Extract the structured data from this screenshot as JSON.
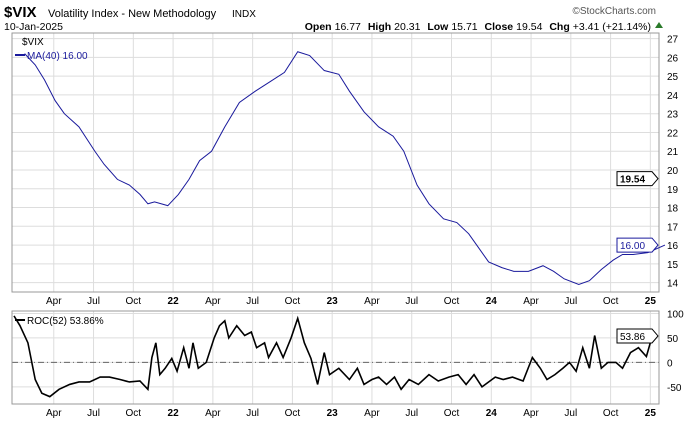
{
  "header": {
    "symbol": "$VIX",
    "name": "Volatility Index - New Methodology",
    "exchange": "INDX",
    "date": "10-Jan-2025",
    "brand": "©StockCharts.com",
    "open_label": "Open",
    "open": "16.77",
    "high_label": "High",
    "high": "20.31",
    "low_label": "Low",
    "low": "15.71",
    "close_label": "Close",
    "close": "19.54",
    "chg_label": "Chg",
    "chg": "+3.41 (+21.14%)"
  },
  "chart_data": [
    {
      "type": "line",
      "title": "$VIX",
      "legend": [
        "$VIX",
        "MA(40) 16.00"
      ],
      "ylim": [
        13.5,
        27.3
      ],
      "yticks": [
        14,
        15,
        16,
        17,
        18,
        19,
        20,
        21,
        22,
        23,
        24,
        25,
        26,
        27
      ],
      "xticks": [
        {
          "m": 3,
          "label": "Apr"
        },
        {
          "m": 6,
          "label": "Jul"
        },
        {
          "m": 9,
          "label": "Oct"
        },
        {
          "m": 12,
          "label": "22",
          "bold": true
        },
        {
          "m": 15,
          "label": "Apr"
        },
        {
          "m": 18,
          "label": "Jul"
        },
        {
          "m": 21,
          "label": "Oct"
        },
        {
          "m": 24,
          "label": "23",
          "bold": true
        },
        {
          "m": 27,
          "label": "Apr"
        },
        {
          "m": 30,
          "label": "Jul"
        },
        {
          "m": 33,
          "label": "Oct"
        },
        {
          "m": 36,
          "label": "24",
          "bold": true
        },
        {
          "m": 39,
          "label": "Apr"
        },
        {
          "m": 42,
          "label": "Jul"
        },
        {
          "m": 45,
          "label": "Oct"
        },
        {
          "m": 48,
          "label": "25",
          "bold": true
        }
      ],
      "xlim": [
        0,
        48.5
      ],
      "price_tag": "19.54",
      "ma_tag": "16.00",
      "price_last": 19.54,
      "series": [
        {
          "name": "MA(40)",
          "color": "#1a1a9c",
          "x": [
            0.8,
            1.6,
            2.3,
            3.1,
            3.8,
            4.9,
            6.1,
            6.8,
            7.8,
            8.7,
            9.5,
            10.1,
            10.6,
            11.6,
            12.4,
            13.2,
            14,
            14.9,
            15.9,
            17,
            18.2,
            19.3,
            20.4,
            21.4,
            22.3,
            23.4,
            24.5,
            25.3,
            26.4,
            27.5,
            28.6,
            29.4,
            30.4,
            31.3,
            32.4,
            33.4,
            34.3,
            35,
            35.8,
            36.8,
            37.7,
            38.8,
            39.9,
            40.7,
            41.5,
            42.6,
            43.4,
            44.3,
            45.2,
            45.9,
            46.7,
            47.8,
            49.1
          ],
          "y": [
            26.2,
            25.6,
            24.8,
            23.7,
            23,
            22.3,
            21,
            20.3,
            19.5,
            19.2,
            18.7,
            18.2,
            18.3,
            18.1,
            18.7,
            19.5,
            20.5,
            21,
            22.3,
            23.6,
            24.2,
            24.7,
            25.2,
            26.3,
            26.1,
            25.3,
            25.1,
            24.2,
            23.1,
            22.3,
            21.8,
            21,
            19.2,
            18.2,
            17.4,
            17.2,
            16.6,
            15.9,
            15.1,
            14.8,
            14.6,
            14.6,
            14.9,
            14.6,
            14.2,
            13.9,
            14.1,
            14.7,
            15.2,
            15.5,
            15.5,
            15.6,
            16.0
          ]
        }
      ]
    },
    {
      "type": "line",
      "title": "ROC(52) 53.86%",
      "legend": [
        "ROC(52) 53.86%"
      ],
      "ylim": [
        -85,
        105
      ],
      "yticks": [
        100,
        50,
        0,
        -50
      ],
      "zero_line": 0,
      "tag": "53.86",
      "series": [
        {
          "name": "ROC(52)",
          "color": "#000000",
          "x": [
            0,
            0.45,
            1.05,
            1.6,
            2.1,
            2.7,
            3.4,
            4.2,
            4.9,
            5.7,
            6.5,
            7.2,
            8,
            8.7,
            9.5,
            10.1,
            10.4,
            10.7,
            11,
            11.4,
            11.9,
            12.3,
            12.8,
            13.2,
            13.5,
            13.9,
            14.5,
            15.1,
            15.5,
            15.9,
            16.2,
            16.8,
            17.4,
            17.9,
            18.3,
            18.9,
            19.2,
            19.8,
            20.3,
            20.9,
            21.4,
            21.9,
            22.4,
            22.9,
            23.4,
            23.8,
            24.5,
            25.3,
            25.9,
            26.4,
            27,
            27.5,
            28.1,
            28.7,
            29.2,
            29.8,
            30.5,
            31.3,
            32,
            32.8,
            33.5,
            34.1,
            34.7,
            35.3,
            35.9,
            36.3,
            36.9,
            37.6,
            38.4,
            39.1,
            39.7,
            40.2,
            40.8,
            41.4,
            41.9,
            42.4,
            42.9,
            43.4,
            43.8,
            44.3,
            44.8,
            45.4,
            45.9,
            46.5,
            47.1,
            47.7,
            48.1,
            48.4
          ],
          "y": [
            95,
            75,
            40,
            -35,
            -63,
            -70,
            -55,
            -45,
            -40,
            -40,
            -30,
            -30,
            -35,
            -40,
            -38,
            -55,
            10,
            40,
            -25,
            -12,
            8,
            -18,
            30,
            -12,
            40,
            -12,
            0,
            50,
            75,
            85,
            50,
            75,
            55,
            62,
            30,
            40,
            10,
            40,
            10,
            50,
            90,
            40,
            8,
            -45,
            20,
            -25,
            -12,
            -35,
            -12,
            -45,
            -35,
            -30,
            -45,
            -30,
            -55,
            -35,
            -45,
            -25,
            -38,
            -30,
            -25,
            -45,
            -25,
            -50,
            -38,
            -30,
            -35,
            -30,
            -38,
            10,
            -12,
            -35,
            -25,
            -12,
            0,
            -18,
            30,
            -12,
            55,
            -12,
            0,
            0,
            -12,
            20,
            30,
            12,
            50,
            54
          ]
        }
      ]
    }
  ]
}
